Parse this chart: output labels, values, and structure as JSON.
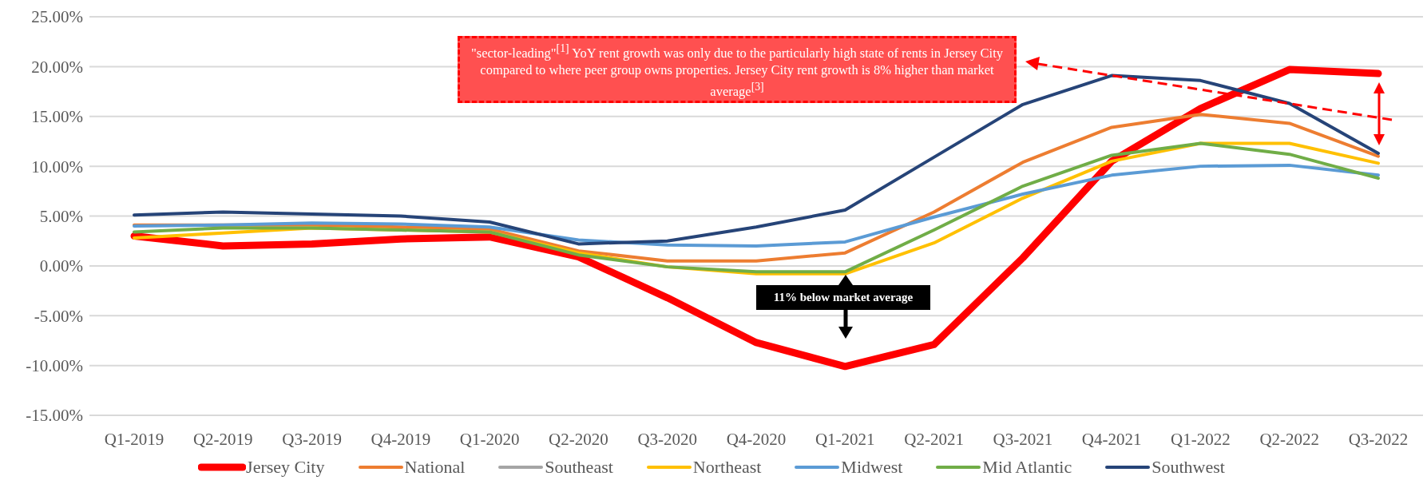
{
  "chart_data": {
    "type": "line",
    "categories": [
      "Q1-2019",
      "Q2-2019",
      "Q3-2019",
      "Q4-2019",
      "Q1-2020",
      "Q2-2020",
      "Q3-2020",
      "Q4-2020",
      "Q1-2021",
      "Q2-2021",
      "Q3-2021",
      "Q4-2021",
      "Q1-2022",
      "Q2-2022",
      "Q3-2022"
    ],
    "series": [
      {
        "name": "Jersey City",
        "color": "#ff0000",
        "values": [
          3.0,
          2.0,
          2.2,
          2.7,
          2.9,
          0.9,
          -3.2,
          -7.7,
          -10.1,
          -7.9,
          0.8,
          10.5,
          15.8,
          19.7,
          19.3
        ]
      },
      {
        "name": "National",
        "color": "#ed7d31",
        "values": [
          4.1,
          4.1,
          4.1,
          3.9,
          3.7,
          1.5,
          0.5,
          0.5,
          1.3,
          5.4,
          10.4,
          13.9,
          15.2,
          14.3,
          11.0
        ]
      },
      {
        "name": "Southeast",
        "color": "#a5a5a5",
        "values": [
          null,
          null,
          null,
          null,
          null,
          null,
          null,
          null,
          null,
          null,
          null,
          null,
          null,
          null,
          null
        ]
      },
      {
        "name": "Northeast",
        "color": "#ffc000",
        "values": [
          2.8,
          3.3,
          3.8,
          3.6,
          3.4,
          1.3,
          -0.1,
          -0.8,
          -0.8,
          2.3,
          6.8,
          10.5,
          12.3,
          12.3,
          10.3
        ]
      },
      {
        "name": "Midwest",
        "color": "#5b9bd5",
        "values": [
          4.0,
          4.1,
          4.3,
          4.2,
          3.9,
          2.6,
          2.1,
          2.0,
          2.4,
          4.9,
          7.2,
          9.1,
          10.0,
          10.1,
          9.1
        ]
      },
      {
        "name": "Mid Atlantic",
        "color": "#70ad47",
        "values": [
          3.4,
          3.8,
          3.8,
          3.6,
          3.4,
          1.1,
          -0.1,
          -0.6,
          -0.6,
          3.6,
          8.0,
          11.1,
          12.3,
          11.2,
          8.8
        ]
      },
      {
        "name": "Southwest",
        "color": "#264478",
        "values": [
          5.1,
          5.4,
          5.2,
          5.0,
          4.4,
          2.2,
          2.5,
          3.9,
          5.6,
          10.9,
          16.2,
          19.1,
          18.6,
          16.3,
          11.3
        ]
      }
    ],
    "ylim": [
      -15,
      25
    ],
    "yticks": [
      {
        "value": -15,
        "label": "-15.00%"
      },
      {
        "value": -10,
        "label": "-10.00%"
      },
      {
        "value": -5,
        "label": "-5.00%"
      },
      {
        "value": 0,
        "label": "0.00%"
      },
      {
        "value": 5,
        "label": "5.00%"
      },
      {
        "value": 10,
        "label": "10.00%"
      },
      {
        "value": 15,
        "label": "15.00%"
      },
      {
        "value": 20,
        "label": "20.00%"
      },
      {
        "value": 25,
        "label": "25.00%"
      }
    ],
    "grid": "y",
    "legend": "bottom",
    "marker": "none",
    "line_style": "solid",
    "annotations": [
      "\"sector-leading\"$^{[1]}$ YoY rent growth was only due to the particularly high state of rents in Jersey City compared to where peer group owns properties. Jersey City rent growth is 8% higher than market average$^{[3]}$",
      "11% below market average"
    ]
  }
}
